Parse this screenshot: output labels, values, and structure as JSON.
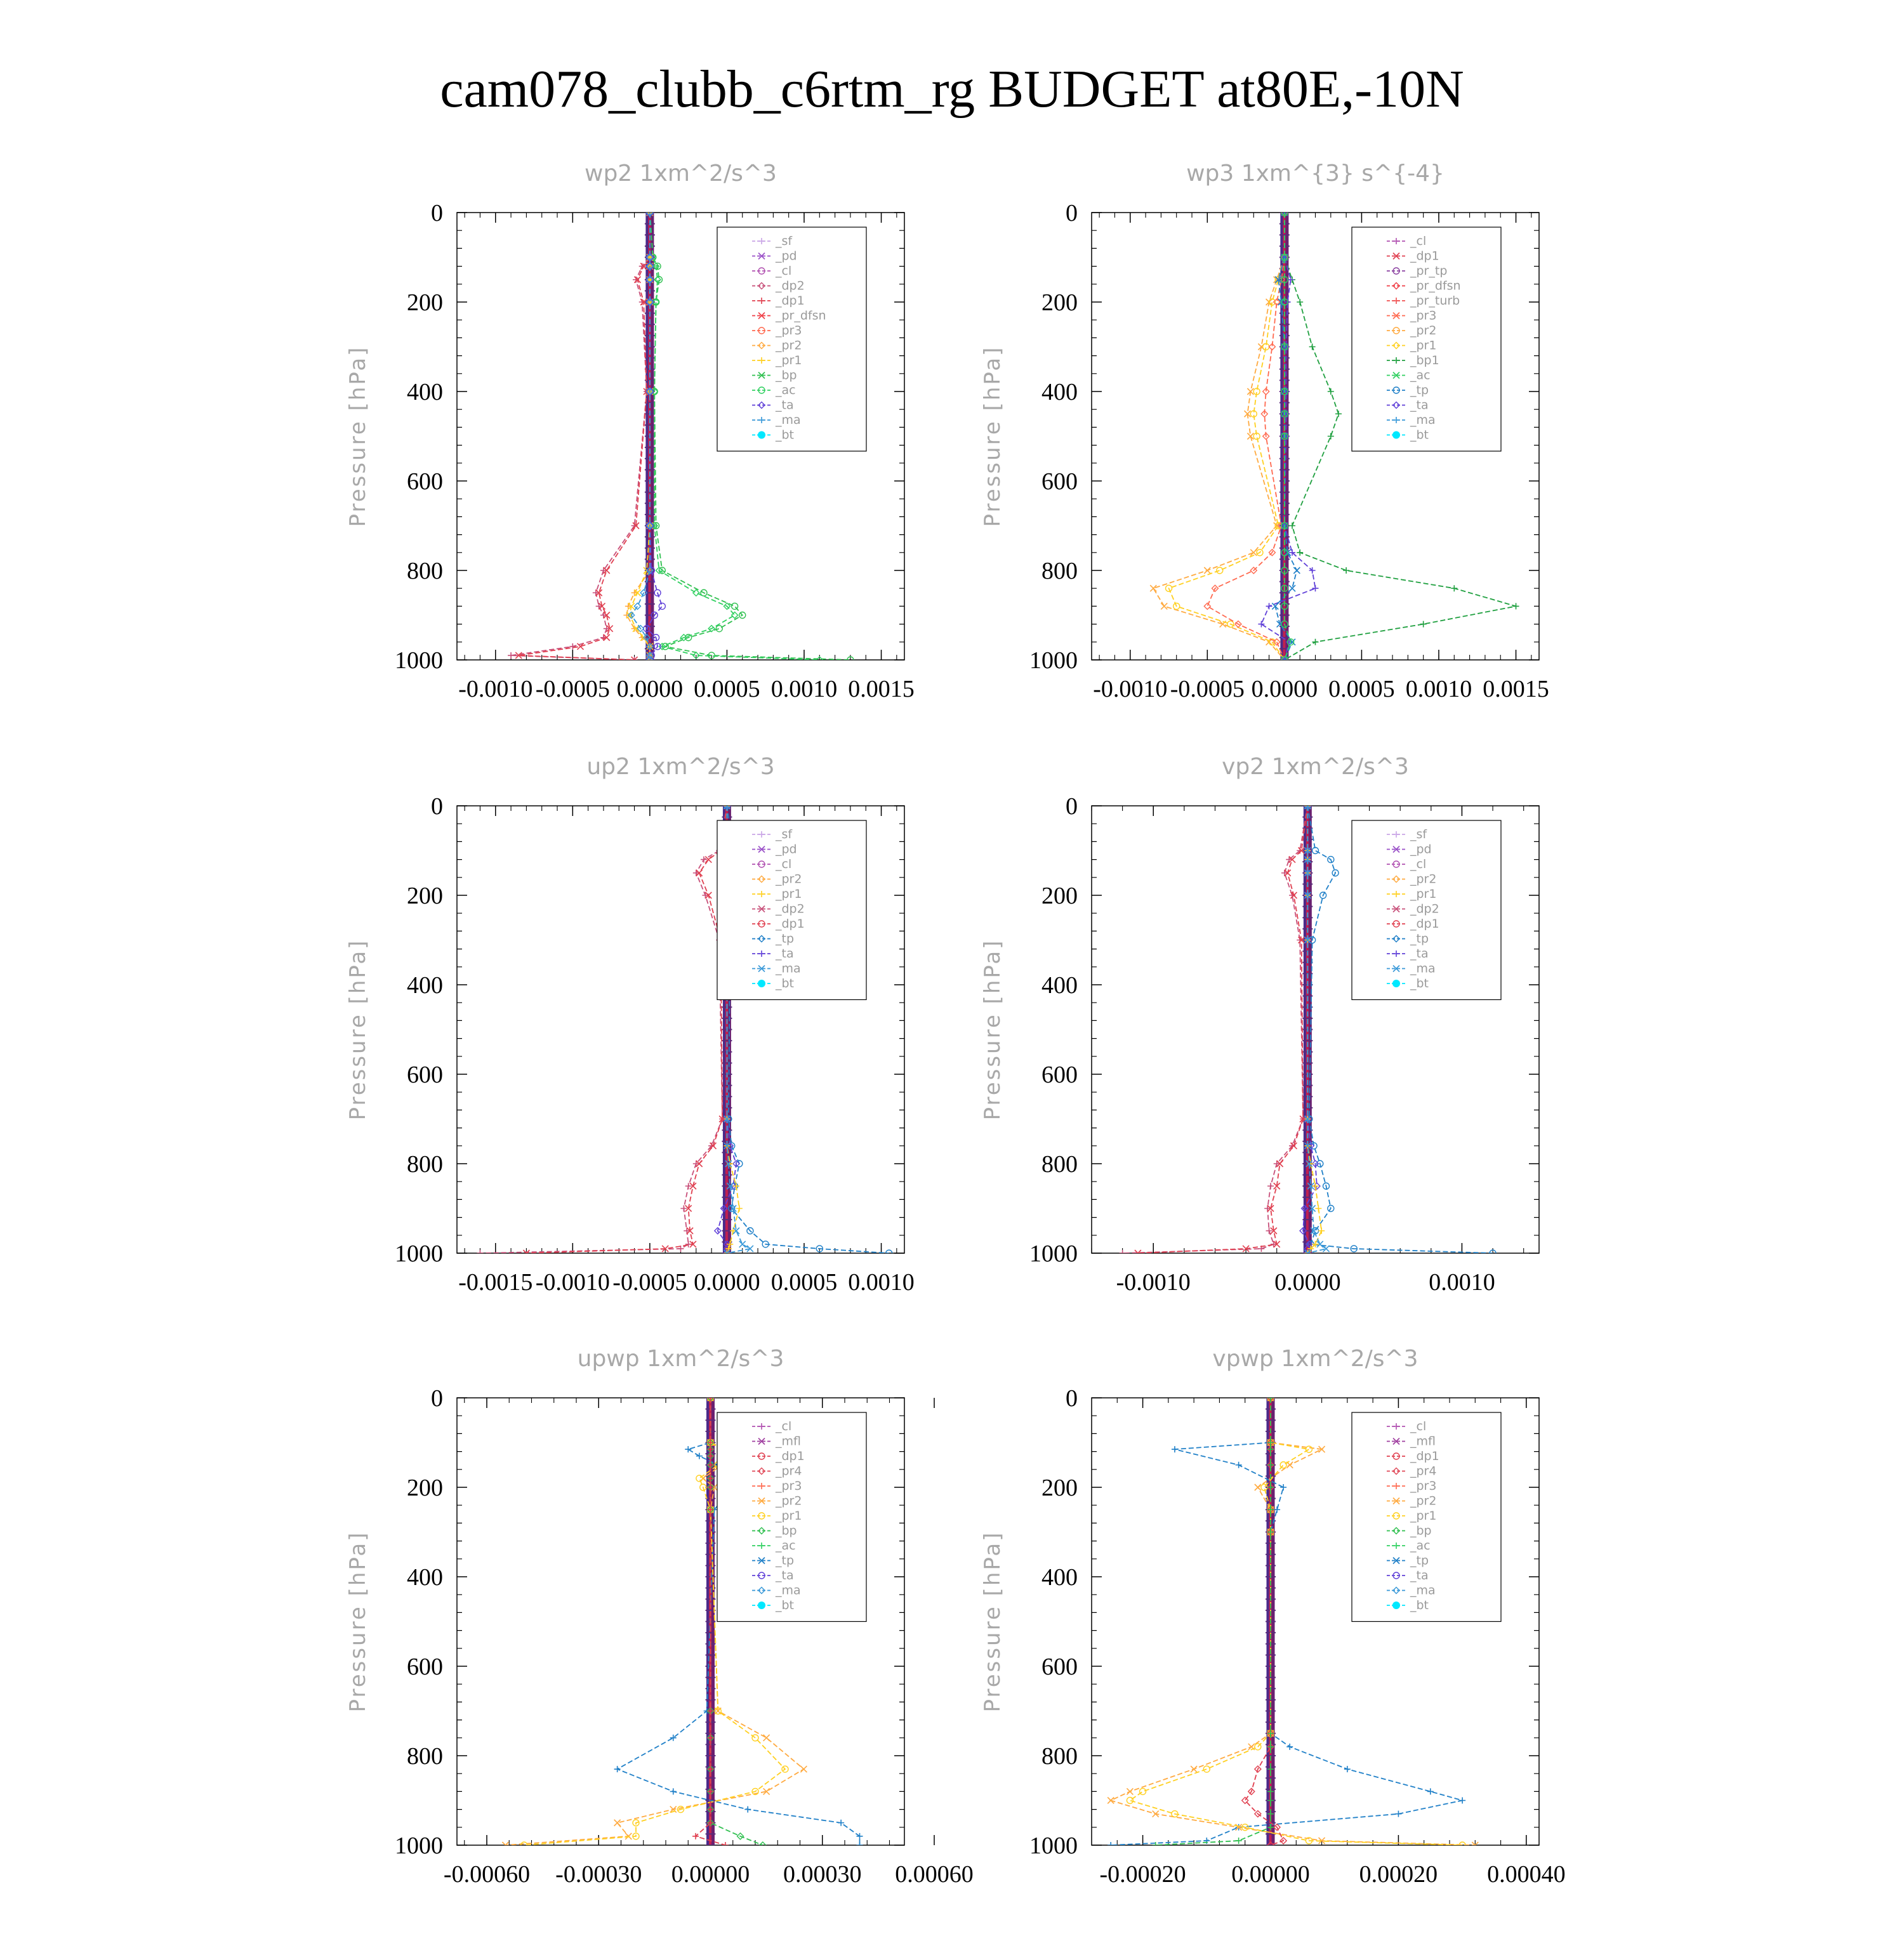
{
  "title": "cam078_clubb_c6rtm_rg  BUDGET at80E,-10N",
  "colors": {
    "_sf": "#c9a5e6",
    "_pd": "#9a50c8",
    "_cl": "#b050b0",
    "_mfl": "#a040a0",
    "_dp2": "#c8507a",
    "_dp1": "#e04050",
    "_pr_dfsn": "#f04048",
    "_pr_tp": "#8a40a0",
    "_pr_turb": "#f05050",
    "_pr4": "#e04858",
    "_pr3": "#ff6a50",
    "_pr2": "#ffaa40",
    "_pr1": "#ffd020",
    "_bp": "#30c050",
    "_bp1": "#20a040",
    "_ac": "#30d060",
    "_tp": "#2080c8",
    "_ta": "#6040d8",
    "_ma": "#3898d8",
    "_bt": "#00e8ff"
  },
  "chart_data": [
    {
      "type": "line",
      "title": "wp2   1xm^2/s^3",
      "ylabel": "Pressure [hPa]",
      "xlim": [
        -0.00125,
        0.00165
      ],
      "ylim": [
        1000,
        0
      ],
      "xticks": [
        "-0.0010",
        "-0.0005",
        "0.0000",
        "0.0005",
        "0.0010",
        "0.0015"
      ],
      "yticks": [
        "0",
        "200",
        "400",
        "600",
        "800",
        "1000"
      ],
      "legend": [
        "_sf",
        "_pd",
        "_cl",
        "_dp2",
        "_dp1",
        "_pr_dfsn",
        "_pr3",
        "_pr2",
        "_pr1",
        "_bp",
        "_ac",
        "_ta",
        "_ma",
        "_bt"
      ],
      "levels": [
        0,
        100,
        120,
        150,
        200,
        400,
        700,
        800,
        850,
        880,
        900,
        930,
        950,
        970,
        990,
        1000
      ],
      "series": [
        {
          "name": "_dp2",
          "x": [
            0,
            0,
            -5e-05,
            -9e-05,
            -5e-05,
            -2e-05,
            -0.0001,
            -0.0003,
            -0.00035,
            -0.00033,
            -0.0003,
            -0.00028,
            -0.0003,
            -0.0005,
            -0.0009,
            -0.0001
          ]
        },
        {
          "name": "_dp1",
          "x": [
            0,
            0,
            -4e-05,
            -8e-05,
            -4e-05,
            -2e-05,
            -9e-05,
            -0.00028,
            -0.00033,
            -0.00031,
            -0.00028,
            -0.00026,
            -0.00028,
            -0.00045,
            -0.00085,
            -0.0001
          ]
        },
        {
          "name": "_bp",
          "x": [
            0,
            2e-05,
            5e-05,
            6e-05,
            4e-05,
            3e-05,
            4e-05,
            8e-05,
            0.00035,
            0.00055,
            0.0006,
            0.00045,
            0.00025,
            0.0001,
            0.0004,
            0.0013
          ]
        },
        {
          "name": "_ac",
          "x": [
            0,
            2e-05,
            4e-05,
            5e-05,
            4e-05,
            3e-05,
            3e-05,
            6e-05,
            0.0003,
            0.0005,
            0.00055,
            0.0004,
            0.00022,
            8e-05,
            0.0003,
            0.0011
          ]
        },
        {
          "name": "_pr2",
          "x": [
            0,
            0,
            0,
            0,
            0,
            0,
            0,
            0,
            -0.0001,
            -0.00014,
            -0.00015,
            -0.0001,
            -5e-05,
            0,
            0,
            0
          ]
        },
        {
          "name": "_pr1",
          "x": [
            0,
            0,
            0,
            0,
            0,
            0,
            0,
            -2e-05,
            -8e-05,
            -0.00012,
            -0.00013,
            -9e-05,
            -4e-05,
            0,
            0,
            0
          ]
        },
        {
          "name": "_ta",
          "x": [
            0,
            0,
            0,
            0,
            0,
            0,
            0,
            1e-05,
            5e-05,
            8e-05,
            3e-05,
            -2e-05,
            4e-05,
            5e-05,
            1e-05,
            0
          ]
        },
        {
          "name": "_ma",
          "x": [
            0,
            0,
            0,
            0,
            0,
            0,
            0,
            0,
            -4e-05,
            -8e-05,
            -0.00012,
            -6e-05,
            -2e-05,
            0,
            0,
            0
          ]
        }
      ]
    },
    {
      "type": "line",
      "title": "wp3   1xm^{3} s^{-4}",
      "ylabel": "Pressure [hPa]",
      "xlim": [
        -0.00125,
        0.00165
      ],
      "ylim": [
        1000,
        0
      ],
      "xticks": [
        "-0.0010",
        "-0.0005",
        "0.0000",
        "0.0005",
        "0.0010",
        "0.0015"
      ],
      "yticks": [
        "0",
        "200",
        "400",
        "600",
        "800",
        "1000"
      ],
      "legend": [
        "_cl",
        "_dp1",
        "_pr_tp",
        "_pr_dfsn",
        "_pr_turb",
        "_pr3",
        "_pr2",
        "_pr1",
        "_bp1",
        "_ac",
        "_tp",
        "_ta",
        "_ma",
        "_bt"
      ],
      "levels": [
        0,
        100,
        150,
        200,
        300,
        400,
        450,
        500,
        700,
        760,
        800,
        840,
        880,
        920,
        960,
        1000
      ],
      "series": [
        {
          "name": "_bp1",
          "x": [
            0,
            0,
            5e-05,
            0.0001,
            0.00018,
            0.0003,
            0.00035,
            0.0003,
            5e-05,
            0.0001,
            0.0004,
            0.0011,
            0.0015,
            0.0009,
            0.0002,
            0
          ]
        },
        {
          "name": "_pr2",
          "x": [
            0,
            0,
            -5e-05,
            -0.0001,
            -0.00015,
            -0.00022,
            -0.00024,
            -0.00022,
            -5e-05,
            -0.0002,
            -0.0005,
            -0.00085,
            -0.00078,
            -0.0004,
            -0.0001,
            0
          ]
        },
        {
          "name": "_pr1",
          "x": [
            0,
            0,
            -4e-05,
            -8e-05,
            -0.00012,
            -0.00018,
            -0.0002,
            -0.00018,
            -4e-05,
            -0.00016,
            -0.00042,
            -0.00075,
            -0.0007,
            -0.00035,
            -8e-05,
            0
          ]
        },
        {
          "name": "_pr3",
          "x": [
            0,
            0,
            -2e-05,
            -5e-05,
            -8e-05,
            -0.00012,
            -0.00013,
            -0.00012,
            -2e-05,
            -8e-05,
            -0.0002,
            -0.00045,
            -0.0005,
            -0.0003,
            -5e-05,
            0
          ]
        },
        {
          "name": "_ta",
          "x": [
            0,
            0,
            4e-05,
            2e-05,
            1e-05,
            1e-05,
            1e-05,
            1e-05,
            0,
            5e-05,
            0.00018,
            0.0002,
            -0.0001,
            -0.00015,
            3e-05,
            0
          ]
        },
        {
          "name": "_tp",
          "x": [
            0,
            0,
            -4e-05,
            -2e-05,
            0,
            0,
            0,
            0,
            0,
            2e-05,
            8e-05,
            5e-05,
            -6e-05,
            -3e-05,
            5e-05,
            0
          ]
        },
        {
          "name": "_ac",
          "x": [
            0,
            0,
            0,
            0,
            0,
            0,
            0,
            0,
            0,
            0,
            0,
            0,
            0,
            0,
            4e-05,
            0
          ]
        }
      ]
    },
    {
      "type": "line",
      "title": "up2   1xm^2/s^3",
      "ylabel": "Pressure [hPa]",
      "xlim": [
        -0.00175,
        0.00115
      ],
      "ylim": [
        1000,
        0
      ],
      "xticks": [
        "-0.0015",
        "-0.0010",
        "-0.0005",
        "0.0000",
        "0.0005",
        "0.0010"
      ],
      "yticks": [
        "0",
        "200",
        "400",
        "600",
        "800",
        "1000"
      ],
      "legend": [
        "_sf",
        "_pd",
        "_cl",
        "_pr2",
        "_pr1",
        "_dp2",
        "_dp1",
        "_tp",
        "_ta",
        "_ma",
        "_bt"
      ],
      "levels": [
        0,
        100,
        120,
        150,
        200,
        300,
        700,
        760,
        800,
        850,
        900,
        950,
        980,
        990,
        1000
      ],
      "series": [
        {
          "name": "_dp2",
          "x": [
            0,
            -5e-05,
            -0.00015,
            -0.0002,
            -0.00014,
            -5e-05,
            -3e-05,
            -0.0001,
            -0.0002,
            -0.00025,
            -0.00028,
            -0.00026,
            -0.00025,
            -0.0003,
            -0.0016
          ]
        },
        {
          "name": "_dp1",
          "x": [
            0,
            -4e-05,
            -0.00012,
            -0.00018,
            -0.00012,
            -4e-05,
            -3e-05,
            -9e-05,
            -0.00018,
            -0.00022,
            -0.00025,
            -0.00024,
            -0.00022,
            -0.0004,
            -0.0013
          ]
        },
        {
          "name": "_tp",
          "x": [
            0,
            4e-05,
            0.00012,
            0.00015,
            0.0001,
            2e-05,
            1e-05,
            3e-05,
            8e-05,
            5e-05,
            3e-05,
            0.00015,
            0.00025,
            0.0006,
            0.00105
          ]
        },
        {
          "name": "_ta",
          "x": [
            0,
            0,
            0,
            0,
            0,
            0,
            0,
            2e-05,
            6e-05,
            4e-05,
            -2e-05,
            -6e-05,
            0,
            0,
            0
          ]
        },
        {
          "name": "_pr1",
          "x": [
            0,
            0,
            0,
            0,
            0,
            0,
            0,
            0,
            2e-05,
            6e-05,
            8e-05,
            4e-05,
            2e-05,
            1e-05,
            0
          ]
        },
        {
          "name": "_ma",
          "x": [
            0,
            0,
            0,
            0,
            0,
            0,
            0,
            0,
            1e-05,
            2e-05,
            4e-05,
            6e-05,
            0.0001,
            0.00015,
            0
          ]
        }
      ]
    },
    {
      "type": "line",
      "title": "vp2   1xm^2/s^3",
      "ylabel": "Pressure [hPa]",
      "xlim": [
        -0.0014,
        0.0015
      ],
      "ylim": [
        1000,
        0
      ],
      "xticks": [
        "-0.0010",
        "0.0000",
        "0.0010"
      ],
      "yticks": [
        "0",
        "200",
        "400",
        "600",
        "800",
        "1000"
      ],
      "legend": [
        "_sf",
        "_pd",
        "_cl",
        "_pr2",
        "_pr1",
        "_dp2",
        "_dp1",
        "_tp",
        "_ta",
        "_ma",
        "_bt"
      ],
      "levels": [
        0,
        100,
        120,
        150,
        200,
        300,
        700,
        760,
        800,
        850,
        900,
        950,
        980,
        990,
        1000
      ],
      "series": [
        {
          "name": "_dp2",
          "x": [
            0,
            -5e-05,
            -0.00012,
            -0.00015,
            -0.0001,
            -5e-05,
            -3e-05,
            -0.0001,
            -0.0002,
            -0.00024,
            -0.00026,
            -0.00025,
            -0.00022,
            -0.0003,
            -0.0012
          ]
        },
        {
          "name": "_dp1",
          "x": [
            0,
            -4e-05,
            -0.0001,
            -0.00013,
            -9e-05,
            -4e-05,
            -3e-05,
            -9e-05,
            -0.00018,
            -0.0002,
            -0.00024,
            -0.00022,
            -0.0002,
            -0.0004,
            -0.0011
          ]
        },
        {
          "name": "_tp",
          "x": [
            0,
            5e-05,
            0.00015,
            0.00018,
            0.0001,
            3e-05,
            1e-05,
            4e-05,
            8e-05,
            0.00012,
            0.00015,
            5e-05,
            2e-05,
            0.0003,
            0.0012
          ]
        },
        {
          "name": "_ta",
          "x": [
            0,
            0,
            0,
            0,
            0,
            0,
            0,
            2e-05,
            5e-05,
            6e-05,
            -2e-05,
            -3e-05,
            1e-05,
            0,
            0
          ]
        },
        {
          "name": "_pr1",
          "x": [
            0,
            0,
            0,
            0,
            0,
            0,
            0,
            0,
            2e-05,
            5e-05,
            7e-05,
            9e-05,
            5e-05,
            2e-05,
            0
          ]
        },
        {
          "name": "_ma",
          "x": [
            0,
            0,
            0,
            0,
            0,
            0,
            0,
            0,
            1e-05,
            2e-05,
            3e-05,
            4e-05,
            8e-05,
            0.00012,
            0
          ]
        }
      ]
    },
    {
      "type": "line",
      "title": "upwp   1xm^2/s^3",
      "ylabel": "Pressure [hPa]",
      "xlim": [
        -0.00068,
        0.00052
      ],
      "ylim": [
        1000,
        0
      ],
      "xticks": [
        "-0.00060",
        "-0.00030",
        "0.00000",
        "0.00030",
        "0.00060"
      ],
      "yticks": [
        "0",
        "200",
        "400",
        "600",
        "800",
        "1000"
      ],
      "legend": [
        "_cl",
        "_mfl",
        "_dp1",
        "_pr4",
        "_pr3",
        "_pr2",
        "_pr1",
        "_bp",
        "_ac",
        "_tp",
        "_ta",
        "_ma",
        "_bt"
      ],
      "levels": [
        0,
        100,
        115,
        130,
        150,
        180,
        200,
        250,
        700,
        760,
        830,
        880,
        920,
        950,
        980,
        1000
      ],
      "series": [
        {
          "name": "_tp",
          "x": [
            0,
            0,
            -6e-05,
            -3e-05,
            2e-05,
            5e-05,
            6e-05,
            1e-05,
            -1e-05,
            -0.0001,
            -0.00025,
            -0.0001,
            0.0001,
            0.00035,
            0.0004,
            0.0004
          ]
        },
        {
          "name": "_pr2",
          "x": [
            0,
            0,
            4e-05,
            6e-05,
            3e-05,
            -2e-05,
            1e-05,
            0,
            2e-05,
            0.00015,
            0.00025,
            0.00015,
            -0.0001,
            -0.00025,
            -0.00022,
            -0.00055
          ]
        },
        {
          "name": "_pr1",
          "x": [
            0,
            0,
            3e-05,
            5e-05,
            2e-05,
            -3e-05,
            -2e-05,
            0,
            2e-05,
            0.00012,
            0.0002,
            0.00012,
            -8e-05,
            -0.0002,
            -0.0002,
            -0.0005
          ]
        },
        {
          "name": "_bp",
          "x": [
            0,
            0,
            0,
            0,
            0,
            0,
            0,
            0,
            0,
            0,
            0,
            0,
            0,
            0,
            8e-05,
            0.00014
          ]
        },
        {
          "name": "_dp1",
          "x": [
            0,
            0,
            0,
            0,
            0,
            0,
            0,
            0,
            0,
            0,
            0,
            0,
            0,
            0,
            -4e-05,
            4e-05
          ]
        }
      ]
    },
    {
      "type": "line",
      "title": "vpwp   1xm^2/s^3",
      "ylabel": "Pressure [hPa]",
      "xlim": [
        -0.00028,
        0.00042
      ],
      "ylim": [
        1000,
        0
      ],
      "xticks": [
        "-0.00020",
        "0.00000",
        "0.00020",
        "0.00040"
      ],
      "yticks": [
        "0",
        "200",
        "400",
        "600",
        "800",
        "1000"
      ],
      "legend": [
        "_cl",
        "_mfl",
        "_dp1",
        "_pr4",
        "_pr3",
        "_pr2",
        "_pr1",
        "_bp",
        "_ac",
        "_tp",
        "_ta",
        "_ma",
        "_bt"
      ],
      "levels": [
        0,
        100,
        115,
        150,
        200,
        250,
        300,
        750,
        780,
        830,
        880,
        900,
        930,
        960,
        990,
        1000
      ],
      "series": [
        {
          "name": "_tp",
          "x": [
            0,
            0,
            -0.00015,
            -5e-05,
            2e-05,
            1e-05,
            0,
            0,
            3e-05,
            0.00012,
            0.00025,
            0.0003,
            0.0002,
            -5e-05,
            -0.0001,
            -0.00025
          ]
        },
        {
          "name": "_pr2",
          "x": [
            0,
            0,
            8e-05,
            3e-05,
            -2e-05,
            0,
            0,
            0,
            -3e-05,
            -0.00012,
            -0.00022,
            -0.00025,
            -0.00018,
            -5e-05,
            8e-05,
            0.00032
          ]
        },
        {
          "name": "_pr1",
          "x": [
            0,
            0,
            6e-05,
            2e-05,
            -1e-05,
            0,
            0,
            0,
            -2e-05,
            -0.0001,
            -0.0002,
            -0.00022,
            -0.00015,
            -4e-05,
            6e-05,
            0.0003
          ]
        },
        {
          "name": "_dp1",
          "x": [
            0,
            0,
            0,
            0,
            0,
            0,
            0,
            0,
            0,
            -2e-05,
            -3e-05,
            -4e-05,
            -2e-05,
            1e-05,
            2e-05,
            0
          ]
        },
        {
          "name": "_bp",
          "x": [
            0,
            0,
            0,
            0,
            0,
            0,
            0,
            0,
            0,
            0,
            0,
            0,
            0,
            0,
            -5e-05,
            -0.00018
          ]
        }
      ]
    }
  ]
}
